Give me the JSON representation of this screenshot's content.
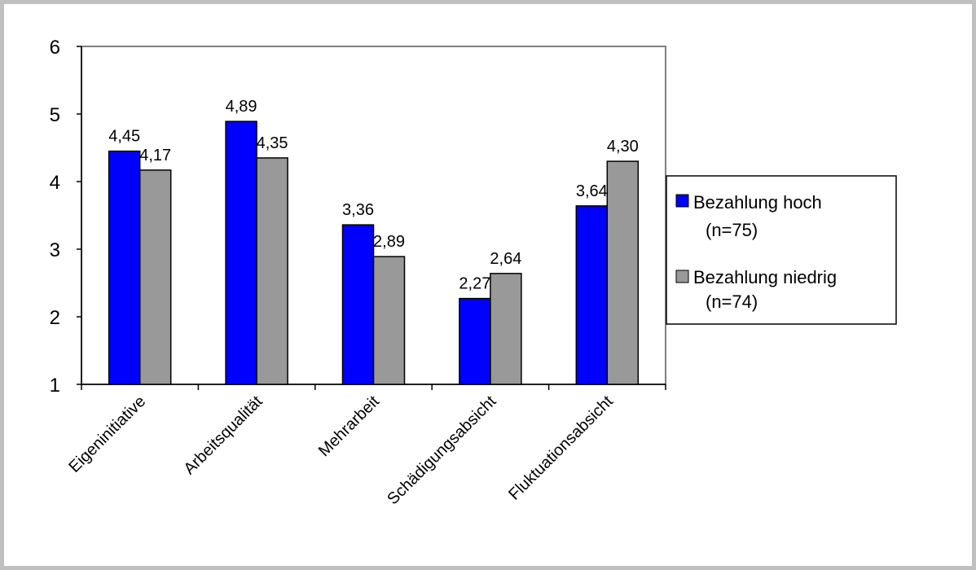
{
  "chart_data": {
    "type": "bar",
    "title": "",
    "xlabel": "",
    "ylabel": "",
    "categories": [
      "Eigeninitiative",
      "Arbeitsqualität",
      "Mehrarbeit",
      "Schädigungsabsicht",
      "Fluktuationsabsicht"
    ],
    "series": [
      {
        "name_line1": "Bezahlung hoch",
        "name_line2": "(n=75)",
        "color": "#0000ff",
        "values": [
          4.45,
          4.89,
          3.36,
          2.27,
          3.64
        ],
        "labels": [
          "4,45",
          "4,89",
          "3,36",
          "2,27",
          "3,64"
        ]
      },
      {
        "name_line1": "Bezahlung niedrig",
        "name_line2": "(n=74)",
        "color": "#999999",
        "values": [
          4.17,
          4.35,
          2.89,
          2.64,
          4.3
        ],
        "labels": [
          "4,17",
          "4,35",
          "2,89",
          "2,64",
          "4,30"
        ]
      }
    ],
    "ylim": [
      1,
      6
    ],
    "yticks": [
      "1",
      "2",
      "3",
      "4",
      "5",
      "6"
    ],
    "grid": false,
    "legend_position": "right"
  }
}
